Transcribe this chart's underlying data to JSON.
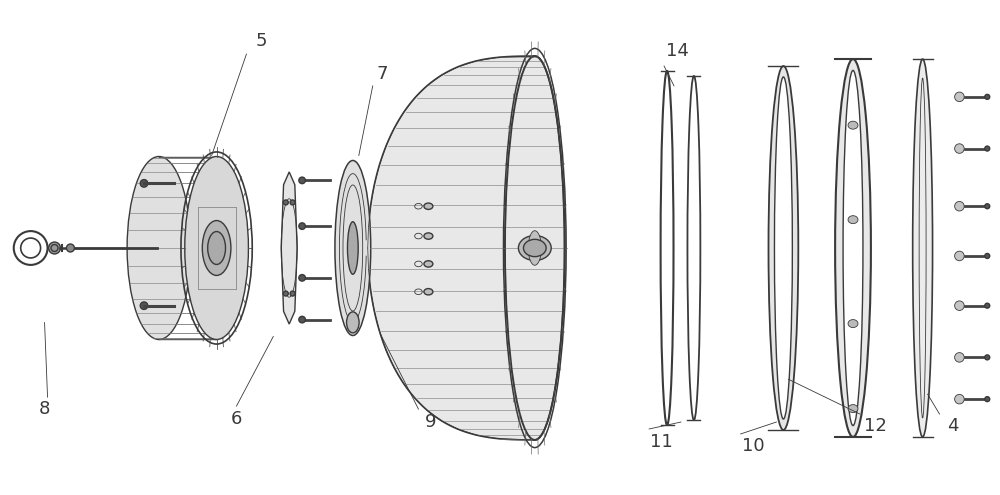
{
  "bg_color": "#ffffff",
  "line_color": "#3a3a3a",
  "lw": 1.0,
  "tlw": 0.6,
  "fig_width": 10.0,
  "fig_height": 4.95,
  "label_fontsize": 13
}
